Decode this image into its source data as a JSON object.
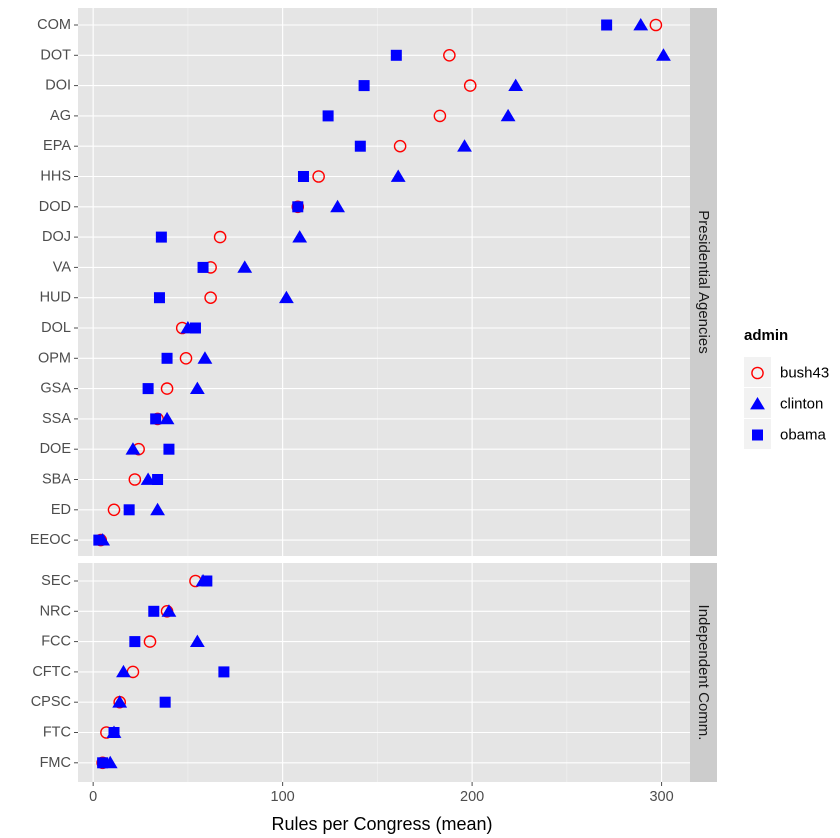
{
  "chart_data": {
    "type": "scatter",
    "xlabel": "Rules per Congress (mean)",
    "xlim": [
      -8,
      315
    ],
    "xticks": [
      0,
      100,
      200,
      300
    ],
    "xtick_labels": [
      "0",
      "100",
      "200",
      "300"
    ],
    "grid": true,
    "legend": {
      "title": "admin",
      "placement": "right",
      "entries": [
        {
          "name": "bush43",
          "shape": "open-circle",
          "color": "#ff0000"
        },
        {
          "name": "clinton",
          "shape": "triangle",
          "color": "#0000ff"
        },
        {
          "name": "obama",
          "shape": "square",
          "color": "#0000ff"
        }
      ]
    },
    "facets": [
      {
        "label": "Presidential Agencies",
        "categories": [
          "COM",
          "DOT",
          "DOI",
          "AG",
          "EPA",
          "HHS",
          "DOD",
          "DOJ",
          "VA",
          "HUD",
          "DOL",
          "OPM",
          "GSA",
          "SSA",
          "DOE",
          "SBA",
          "ED",
          "EEOC"
        ],
        "series": [
          {
            "name": "bush43",
            "values": [
              297,
              188,
              199,
              183,
              162,
              119,
              108,
              67,
              62,
              62,
              47,
              49,
              39,
              34,
              24,
              22,
              11,
              4
            ]
          },
          {
            "name": "clinton",
            "values": [
              289,
              301,
              223,
              219,
              196,
              161,
              129,
              109,
              80,
              102,
              50,
              59,
              55,
              39,
              21,
              29,
              34,
              5
            ]
          },
          {
            "name": "obama",
            "values": [
              271,
              160,
              143,
              124,
              141,
              111,
              108,
              36,
              58,
              35,
              54,
              39,
              29,
              33,
              40,
              34,
              19,
              3
            ]
          }
        ]
      },
      {
        "label": "Independent Comm.",
        "categories": [
          "SEC",
          "NRC",
          "FCC",
          "CFTC",
          "CPSC",
          "FTC",
          "FMC"
        ],
        "series": [
          {
            "name": "bush43",
            "values": [
              54,
              39,
              30,
              21,
              14,
              7,
              5
            ]
          },
          {
            "name": "clinton",
            "values": [
              58,
              40,
              55,
              16,
              14,
              11,
              9
            ]
          },
          {
            "name": "obama",
            "values": [
              60,
              32,
              22,
              69,
              38,
              11,
              5
            ]
          }
        ]
      }
    ]
  }
}
